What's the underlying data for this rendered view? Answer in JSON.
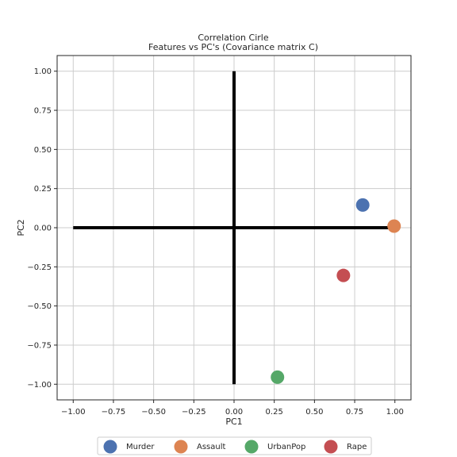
{
  "chart_data": {
    "type": "scatter",
    "title": "Correlation Cirle",
    "subtitle": "Features vs PC's (Covariance matrix C)",
    "xlabel": "PC1",
    "ylabel": "PC2",
    "xlim": [
      -1.1,
      1.1
    ],
    "ylim": [
      -1.1,
      1.1
    ],
    "grid": true,
    "xticks": [
      -1.0,
      -0.75,
      -0.5,
      -0.25,
      0.0,
      0.25,
      0.5,
      0.75,
      1.0
    ],
    "yticks": [
      -1.0,
      -0.75,
      -0.5,
      -0.25,
      0.0,
      0.25,
      0.5,
      0.75,
      1.0
    ],
    "xtick_labels": [
      "−1.00",
      "−0.75",
      "−0.50",
      "−0.25",
      "0.00",
      "0.25",
      "0.50",
      "0.75",
      "1.00"
    ],
    "ytick_labels": [
      "−1.00",
      "−0.75",
      "−0.50",
      "−0.25",
      "0.00",
      "0.25",
      "0.50",
      "0.75",
      "1.00"
    ],
    "reference_lines": {
      "horizontal": [
        -1.0,
        1.0
      ],
      "vertical": [
        -1.0,
        1.0
      ],
      "color": "#000000"
    },
    "legend_placement": "bottom-center",
    "series": [
      {
        "name": "Murder",
        "x": 0.8,
        "y": 0.145,
        "color": "#4c72b0"
      },
      {
        "name": "Assault",
        "x": 0.995,
        "y": 0.01,
        "color": "#dd8452"
      },
      {
        "name": "UrbanPop",
        "x": 0.27,
        "y": -0.955,
        "color": "#55a868"
      },
      {
        "name": "Rape",
        "x": 0.68,
        "y": -0.305,
        "color": "#c44e52"
      }
    ]
  }
}
